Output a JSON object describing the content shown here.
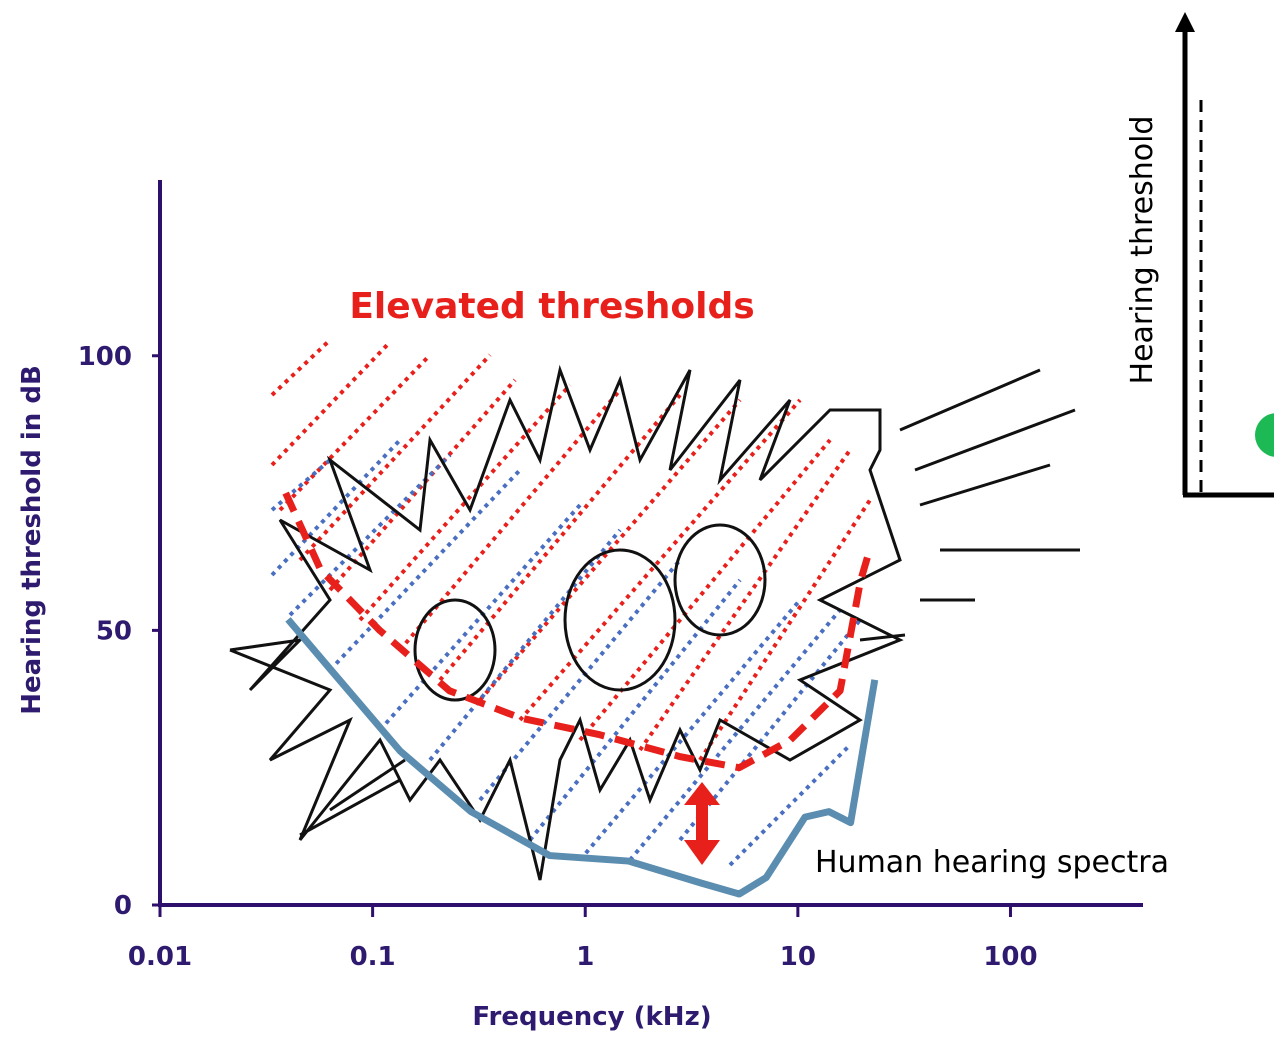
{
  "chart_data": {
    "type": "line",
    "x_label": "Frequency (kHz)",
    "y_label": "Hearing threshold in dB",
    "x_scale": "log",
    "xlim": [
      0.01,
      420
    ],
    "xticks": [
      0.01,
      0.1,
      1,
      10,
      100
    ],
    "ylim": [
      0,
      132
    ],
    "yticks": [
      0,
      50,
      100
    ],
    "series": [
      {
        "name": "Human hearing spectra",
        "color": "#5b8db0",
        "style": "solid",
        "x": [
          0.04,
          0.063,
          0.135,
          0.29,
          0.68,
          1.6,
          3.5,
          5.3,
          7.1,
          10.8,
          14,
          17.7,
          23
        ],
        "values": [
          52,
          43,
          28,
          17,
          9,
          8,
          4,
          2,
          5,
          16,
          17,
          15,
          41
        ]
      },
      {
        "name": "Elevated thresholds",
        "color": "#e8201c",
        "style": "dashed",
        "x": [
          0.039,
          0.057,
          0.108,
          0.23,
          0.5,
          1.17,
          2.8,
          5.3,
          9.2,
          15.8,
          19.7,
          21.5
        ],
        "values": [
          75,
          61,
          50,
          39,
          34,
          31,
          27,
          25,
          30,
          39,
          59,
          64
        ]
      }
    ]
  },
  "inset_axis_label": "Hearing threshold"
}
